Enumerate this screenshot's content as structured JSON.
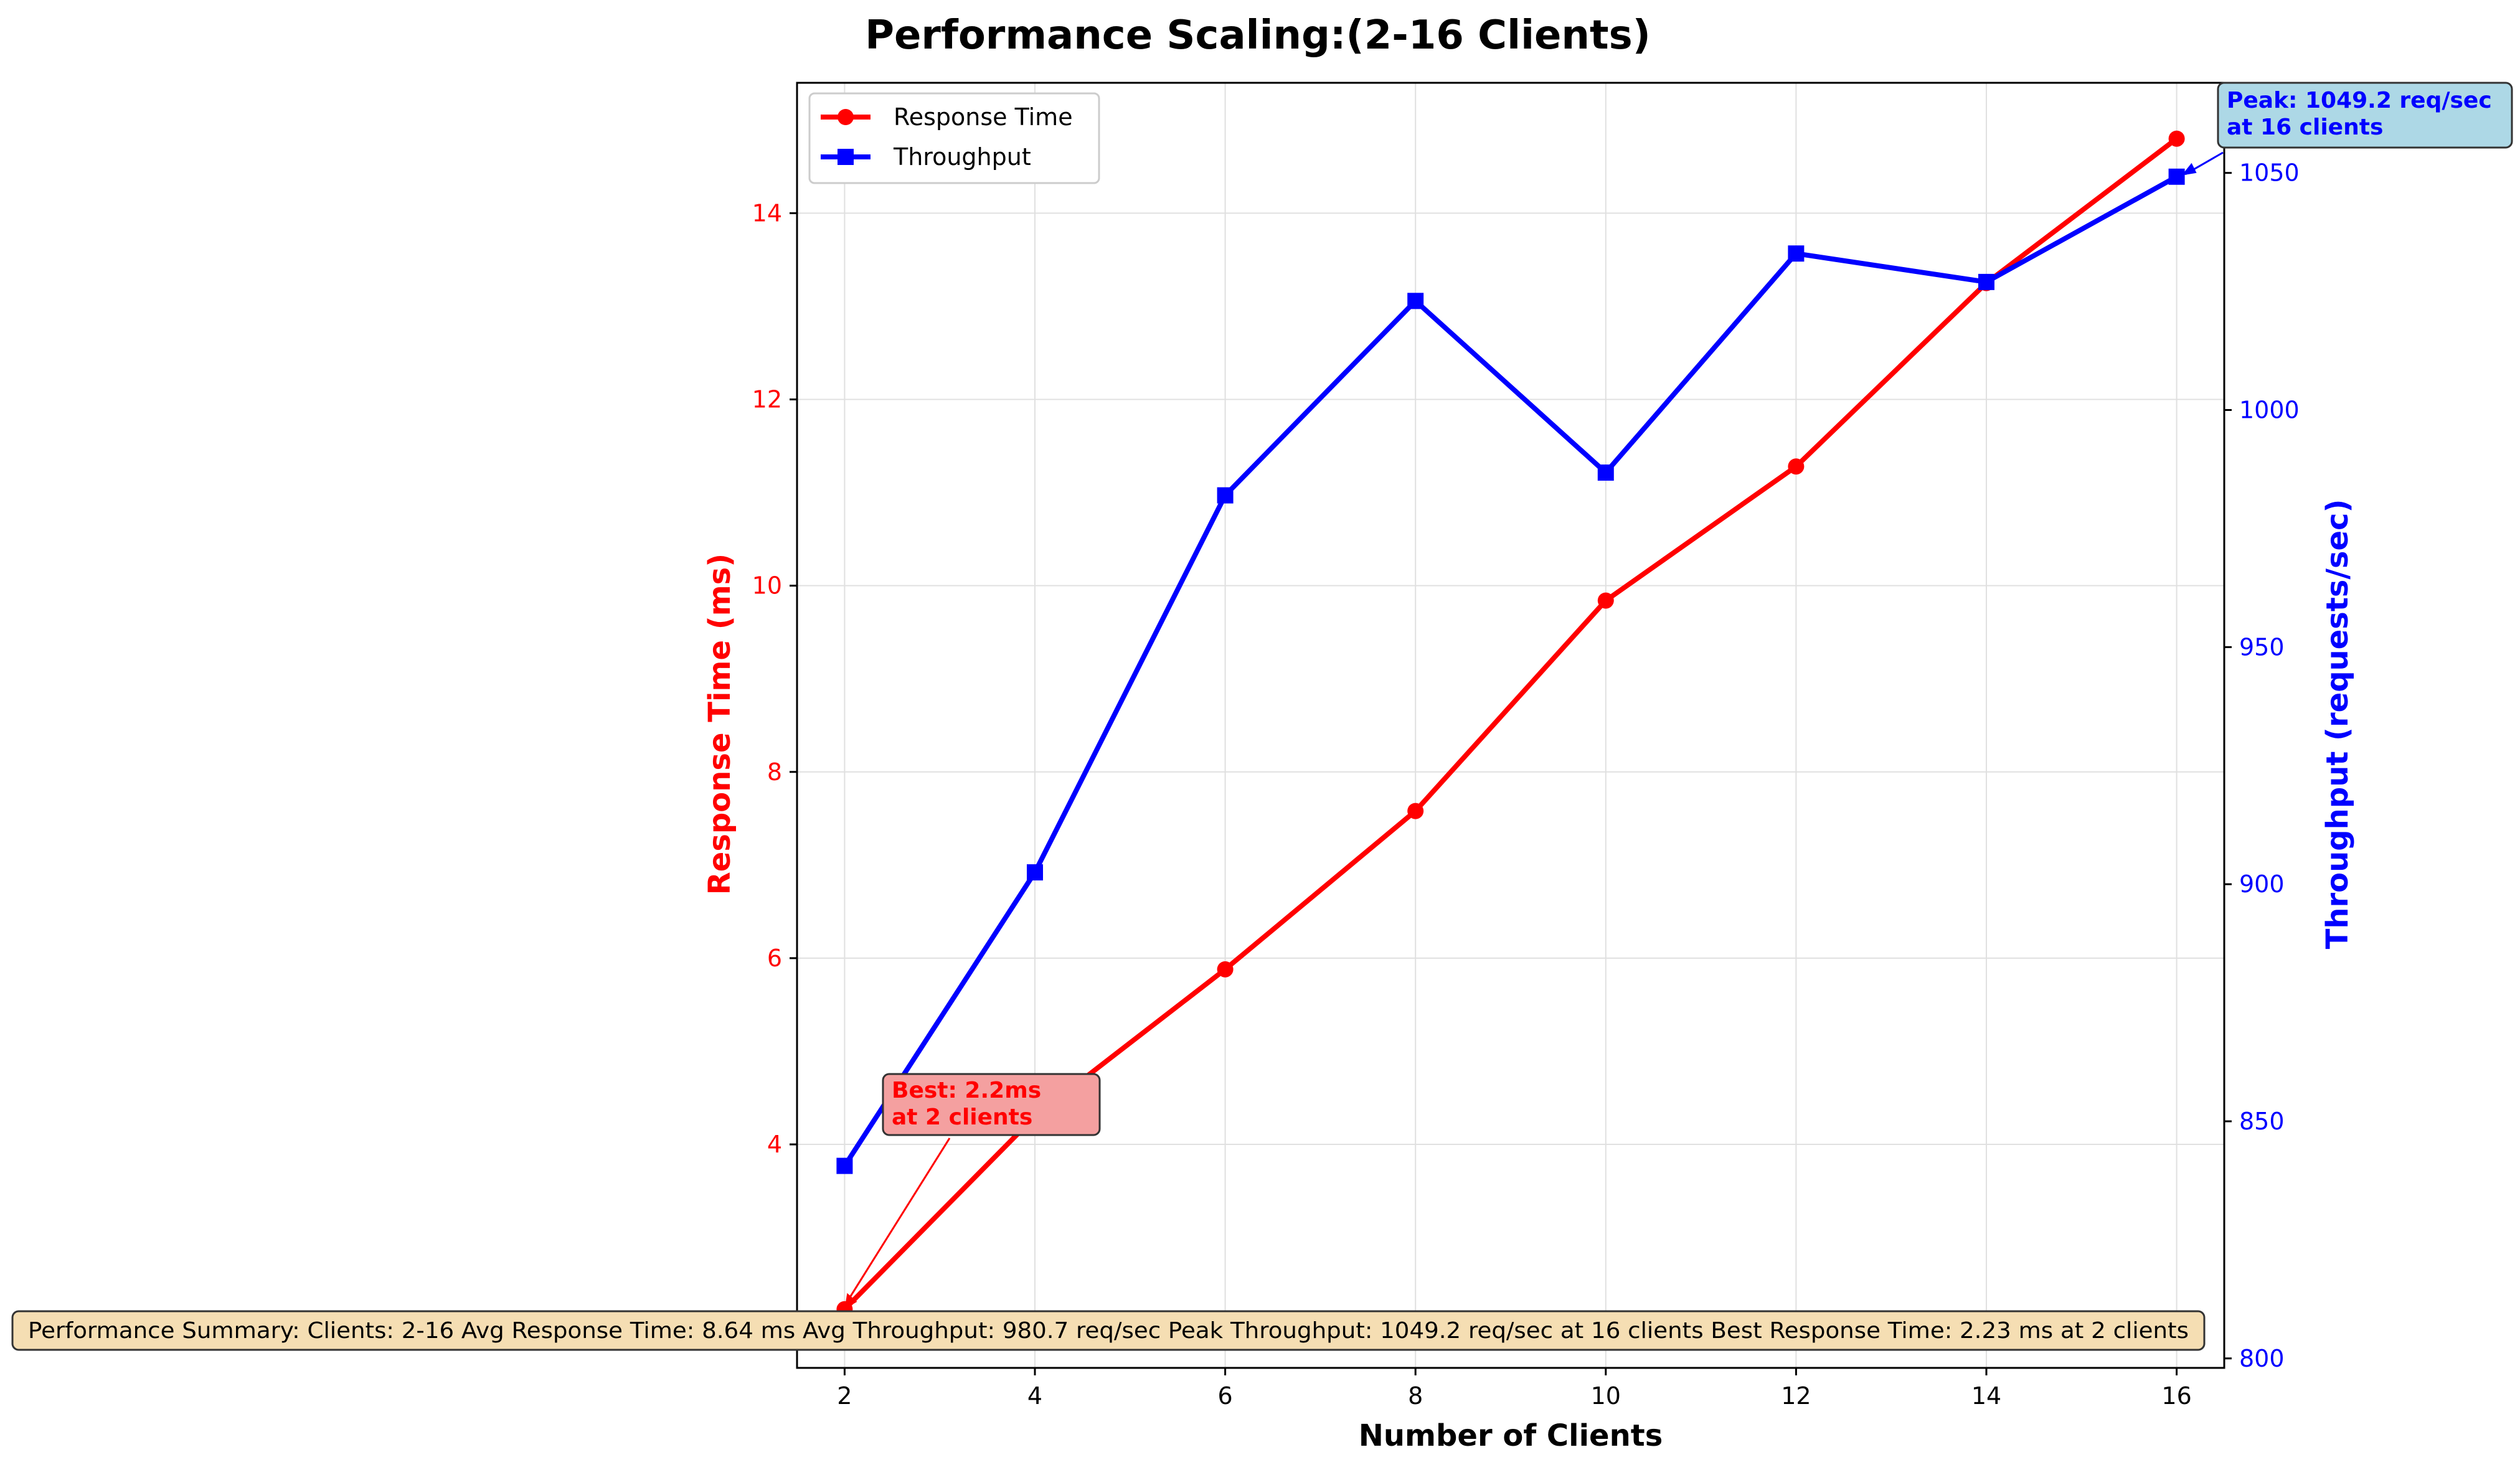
{
  "colors": {
    "response": "#ff0000",
    "throughput": "#0000ff",
    "grid": "#e0e0e0",
    "summary_bg": "#f5deb3",
    "best_bg": "#f4a0a0",
    "peak_bg": "#add8e6"
  },
  "chart_data": {
    "type": "line",
    "title": "Performance Scaling:(2-16 Clients)",
    "xlabel": "Number of Clients",
    "ylabel": "Response Time (ms)",
    "y2label": "Throughput (requests/sec)",
    "x": [
      2,
      4,
      6,
      8,
      10,
      12,
      14,
      16
    ],
    "xlim": [
      1.5,
      16.5
    ],
    "ylim": [
      1.6,
      15.4
    ],
    "y2lim": [
      798,
      1069
    ],
    "x_ticks": [
      "2",
      "4",
      "6",
      "8",
      "10",
      "12",
      "14",
      "16"
    ],
    "y_ticks": [
      "4",
      "6",
      "8",
      "10",
      "12",
      "14"
    ],
    "y2_ticks": [
      "800",
      "850",
      "900",
      "950",
      "1000",
      "1050"
    ],
    "grid": true,
    "legend_position": "top-left",
    "series": [
      {
        "name": "Response Time",
        "axis": "left",
        "marker": "circle",
        "values": [
          2.23,
          4.3,
          5.88,
          7.58,
          9.84,
          11.28,
          13.25,
          14.8
        ]
      },
      {
        "name": "Throughput",
        "axis": "right",
        "marker": "square",
        "values": [
          840.6,
          902.5,
          982.0,
          1023.0,
          986.8,
          1033.0,
          1027.0,
          1049.2
        ]
      }
    ],
    "annotations": {
      "best": {
        "line1": "Best: 2.2ms",
        "line2": "at 2 clients",
        "x": 2,
        "y": 2.23
      },
      "peak": {
        "line1": "Peak: 1049.2 req/sec",
        "line2": "at 16 clients",
        "x": 16,
        "y": 1049.2
      }
    },
    "summary": "Performance Summary: Clients: 2-16 Avg Response Time: 8.64 ms Avg Throughput: 980.7 req/sec Peak Throughput: 1049.2 req/sec at 16 clients Best Response Time: 2.23 ms at 2 clients"
  }
}
